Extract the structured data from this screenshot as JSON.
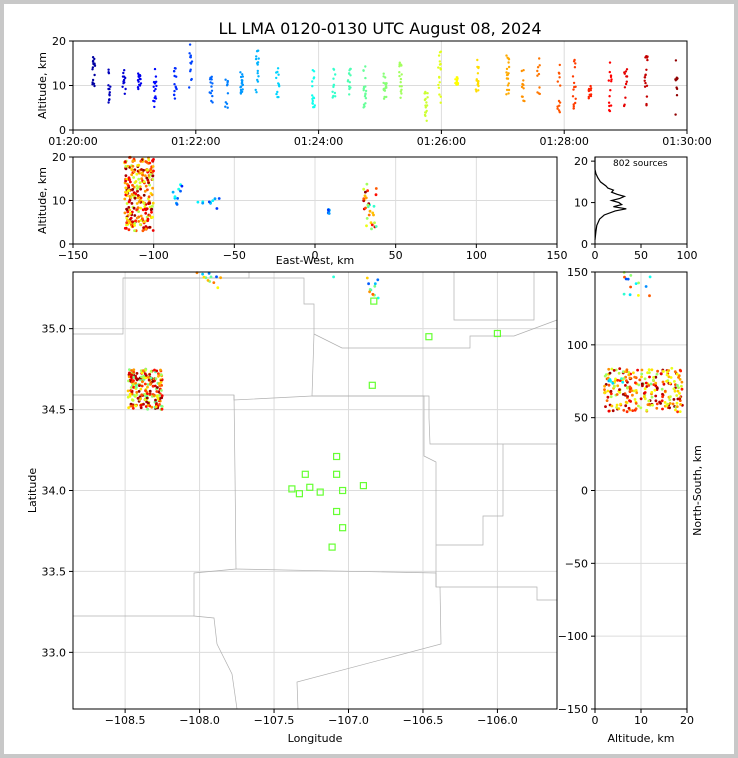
{
  "title": "LL LMA 0120-0130 UTC August 08, 2024",
  "colors": {
    "station": "#66ff33",
    "counts": "#000000",
    "border": "#b0b0b0",
    "grid": "#dcdcdc"
  },
  "chart_data": [
    {
      "id": "time_height",
      "type": "scatter",
      "ylabel": "Altitude, km",
      "xlim": [
        "01:20:00",
        "01:30:00"
      ],
      "ylim": [
        0,
        20
      ],
      "xticks": [
        "01:20:00",
        "01:22:00",
        "01:24:00",
        "01:26:00",
        "01:28:00",
        "01:30:00"
      ],
      "yticks": [
        0,
        10,
        20
      ],
      "grid": true,
      "colormap": "jet by time",
      "clusters": [
        {
          "t": "01:20:20",
          "alt": [
            9,
            17
          ]
        },
        {
          "t": "01:20:35",
          "alt": [
            6,
            14
          ]
        },
        {
          "t": "01:20:50",
          "alt": [
            8,
            14
          ]
        },
        {
          "t": "01:21:05",
          "alt": [
            8,
            13
          ]
        },
        {
          "t": "01:21:20",
          "alt": [
            4,
            14
          ]
        },
        {
          "t": "01:21:40",
          "alt": [
            7,
            14
          ]
        },
        {
          "t": "01:21:55",
          "alt": [
            8,
            20
          ]
        },
        {
          "t": "01:22:15",
          "alt": [
            6,
            12
          ]
        },
        {
          "t": "01:22:30",
          "alt": [
            3,
            13
          ]
        },
        {
          "t": "01:22:45",
          "alt": [
            8,
            13
          ]
        },
        {
          "t": "01:23:00",
          "alt": [
            8,
            18
          ]
        },
        {
          "t": "01:23:20",
          "alt": [
            7,
            14
          ]
        },
        {
          "t": "01:23:55",
          "alt": [
            5,
            15
          ]
        },
        {
          "t": "01:24:15",
          "alt": [
            7,
            14
          ]
        },
        {
          "t": "01:24:30",
          "alt": [
            7,
            14
          ]
        },
        {
          "t": "01:24:45",
          "alt": [
            5,
            15
          ]
        },
        {
          "t": "01:25:05",
          "alt": [
            7,
            13
          ]
        },
        {
          "t": "01:25:20",
          "alt": [
            7,
            16
          ]
        },
        {
          "t": "01:25:45",
          "alt": [
            2,
            9
          ]
        },
        {
          "t": "01:25:58",
          "alt": [
            6,
            18
          ]
        },
        {
          "t": "01:26:15",
          "alt": [
            10,
            12
          ]
        },
        {
          "t": "01:26:35",
          "alt": [
            8,
            16
          ]
        },
        {
          "t": "01:27:05",
          "alt": [
            8,
            17
          ]
        },
        {
          "t": "01:27:20",
          "alt": [
            5,
            14
          ]
        },
        {
          "t": "01:27:35",
          "alt": [
            8,
            17
          ]
        },
        {
          "t": "01:27:55",
          "alt": [
            4,
            16
          ]
        },
        {
          "t": "01:28:10",
          "alt": [
            4,
            16
          ]
        },
        {
          "t": "01:28:25",
          "alt": [
            7,
            10
          ]
        },
        {
          "t": "01:28:45",
          "alt": [
            4,
            16
          ]
        },
        {
          "t": "01:29:00",
          "alt": [
            5,
            14
          ]
        },
        {
          "t": "01:29:20",
          "alt": [
            5,
            17
          ]
        },
        {
          "t": "01:29:50",
          "alt": [
            3,
            16
          ]
        },
        {
          "t": "01:30:10",
          "alt": [
            8,
            10
          ]
        }
      ]
    },
    {
      "id": "ew_height",
      "type": "scatter",
      "xlabel": "East-West, km",
      "ylabel": "Altitude, km",
      "xlim": [
        -150,
        150
      ],
      "ylim": [
        0,
        20
      ],
      "xticks": [
        -150,
        -100,
        -50,
        0,
        50,
        100,
        150
      ],
      "yticks": [
        0,
        10,
        20
      ],
      "grid": true,
      "clusters": [
        {
          "x": [
            -118,
            -100
          ],
          "alt": [
            3,
            20
          ]
        },
        {
          "x": [
            -88,
            -82
          ],
          "alt": [
            9,
            14
          ]
        },
        {
          "x": [
            -74,
            -58
          ],
          "alt": [
            8,
            11
          ]
        },
        {
          "x": [
            8,
            9
          ],
          "alt": [
            7,
            8
          ]
        },
        {
          "x": [
            30,
            38
          ],
          "alt": [
            3,
            14
          ]
        }
      ]
    },
    {
      "id": "alt_hist",
      "type": "line",
      "annotation": "802 sources",
      "xlim": [
        0,
        100
      ],
      "ylim": [
        0,
        21
      ],
      "xticks": [
        0,
        50,
        100
      ],
      "yticks": [
        0,
        10,
        20
      ],
      "profile": [
        {
          "alt": 1,
          "count": 0
        },
        {
          "alt": 3,
          "count": 1
        },
        {
          "alt": 4.5,
          "count": 2
        },
        {
          "alt": 6,
          "count": 5
        },
        {
          "alt": 7,
          "count": 10
        },
        {
          "alt": 8,
          "count": 22
        },
        {
          "alt": 8.5,
          "count": 34
        },
        {
          "alt": 9,
          "count": 20
        },
        {
          "alt": 9.5,
          "count": 29
        },
        {
          "alt": 10,
          "count": 26
        },
        {
          "alt": 10.5,
          "count": 18
        },
        {
          "alt": 11,
          "count": 27
        },
        {
          "alt": 11.5,
          "count": 32
        },
        {
          "alt": 12,
          "count": 24
        },
        {
          "alt": 12.5,
          "count": 18
        },
        {
          "alt": 13,
          "count": 20
        },
        {
          "alt": 13.5,
          "count": 14
        },
        {
          "alt": 14,
          "count": 12
        },
        {
          "alt": 15,
          "count": 6
        },
        {
          "alt": 16,
          "count": 3
        },
        {
          "alt": 17,
          "count": 1
        },
        {
          "alt": 18,
          "count": 0
        },
        {
          "alt": 21,
          "count": 0
        }
      ]
    },
    {
      "id": "plan_view",
      "type": "scatter",
      "xlabel": "Longitude",
      "ylabel": "Latitude",
      "xlim": [
        -108.85,
        -105.6
      ],
      "ylim": [
        32.65,
        35.35
      ],
      "xticks": [
        -108.5,
        -108.0,
        -107.5,
        -107.0,
        -106.5,
        -106.0
      ],
      "xtick_labels": [
        "−108.5",
        "−108.0",
        "−107.5",
        "−107.0",
        "−106.5",
        "−106.0"
      ],
      "yticks": [
        33.0,
        33.5,
        34.0,
        34.5,
        35.0
      ],
      "yticks_labels": [
        "33.0",
        "33.5",
        "34.0",
        "34.5",
        "35.0"
      ],
      "grid": true,
      "stations": [
        {
          "lon": -107.08,
          "lat": 34.21
        },
        {
          "lon": -107.29,
          "lat": 34.1
        },
        {
          "lon": -107.08,
          "lat": 34.1
        },
        {
          "lon": -107.38,
          "lat": 34.01
        },
        {
          "lon": -107.26,
          "lat": 34.02
        },
        {
          "lon": -107.33,
          "lat": 33.98
        },
        {
          "lon": -107.19,
          "lat": 33.99
        },
        {
          "lon": -107.04,
          "lat": 34.0
        },
        {
          "lon": -106.9,
          "lat": 34.03
        },
        {
          "lon": -107.08,
          "lat": 33.87
        },
        {
          "lon": -107.04,
          "lat": 33.77
        },
        {
          "lon": -107.11,
          "lat": 33.65
        },
        {
          "lon": -106.84,
          "lat": 34.65
        },
        {
          "lon": -106.83,
          "lat": 35.17
        },
        {
          "lon": -106.46,
          "lat": 34.95
        },
        {
          "lon": -106.0,
          "lat": 34.97
        }
      ],
      "clusters": [
        {
          "lon": [
            -108.48,
            -108.25
          ],
          "lat": [
            34.5,
            34.75
          ]
        },
        {
          "lon": [
            -108.02,
            -107.85
          ],
          "lat": [
            35.25,
            35.35
          ]
        },
        {
          "lon": [
            -106.88,
            -106.8
          ],
          "lat": [
            35.18,
            35.35
          ]
        },
        {
          "lon": [
            -107.1,
            -107.1
          ],
          "lat": [
            35.32,
            35.32
          ]
        }
      ]
    },
    {
      "id": "ns_height",
      "type": "scatter",
      "xlabel": "Altitude, km",
      "ylabel": "North-South, km",
      "xlim": [
        0,
        20
      ],
      "ylim": [
        -150,
        150
      ],
      "xticks": [
        0,
        10,
        20
      ],
      "yticks": [
        -150,
        -100,
        -50,
        0,
        50,
        100,
        150
      ],
      "yticks_labels": [
        "−150",
        "−100",
        "−50",
        "0",
        "50",
        "100",
        "150"
      ],
      "grid": true,
      "clusters": [
        {
          "alt": [
            2,
            19
          ],
          "ns": [
            54,
            84
          ]
        },
        {
          "alt": [
            6,
            12
          ],
          "ns": [
            132,
            150
          ]
        },
        {
          "alt": [
            3,
            8
          ],
          "ns": [
            68,
            82
          ]
        }
      ]
    }
  ]
}
